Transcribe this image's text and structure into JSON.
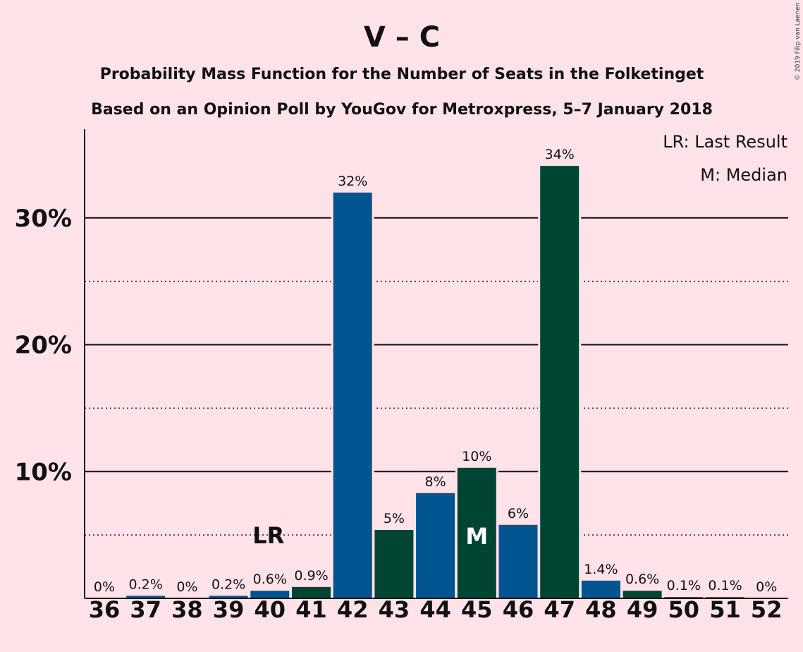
{
  "chart_data": {
    "type": "bar",
    "title": "V – C",
    "subtitle_line1": "Probability Mass Function for the Number of Seats in the Folketinget",
    "subtitle_line2": "Based on an Opinion Poll by YouGov for Metroxpress, 5–7 January 2018",
    "copyright": "© 2019 Filip van Laenen",
    "legend": {
      "placement": "top-right",
      "entries": [
        "LR: Last Result",
        "M: Median"
      ]
    },
    "categories": [
      "36",
      "37",
      "38",
      "39",
      "40",
      "41",
      "42",
      "43",
      "44",
      "45",
      "46",
      "47",
      "48",
      "49",
      "50",
      "51",
      "52"
    ],
    "values": [
      0,
      0.2,
      0,
      0.2,
      0.6,
      0.9,
      32,
      5.4,
      8.3,
      10.3,
      5.8,
      34.1,
      1.4,
      0.6,
      0.1,
      0.1,
      0
    ],
    "data_labels": [
      "0%",
      "0.2%",
      "0%",
      "0.2%",
      "0.6%",
      "0.9%",
      "32%",
      "5%",
      "8%",
      "10%",
      "6%",
      "34%",
      "1.4%",
      "0.6%",
      "0.1%",
      "0.1%",
      "0%"
    ],
    "bar_colors": [
      "#00548F",
      "#00548F",
      "#004434",
      "#00548F",
      "#00548F",
      "#004434",
      "#00548F",
      "#004434",
      "#00548F",
      "#004434",
      "#00548F",
      "#004434",
      "#00548F",
      "#004434",
      "#004434",
      "#00548F",
      "#004434"
    ],
    "colors": {
      "blue": "#00548F",
      "green": "#004434",
      "background": "#FFE3E8"
    },
    "markers": {
      "last_result": {
        "category": "40",
        "label": "LR"
      },
      "median": {
        "category": "45",
        "label": "M"
      }
    },
    "yticks": [
      10,
      20,
      30
    ],
    "ytick_labels": [
      "10%",
      "20%",
      "30%"
    ],
    "minor_grid": [
      5,
      15,
      25
    ],
    "ylim": [
      0,
      37
    ],
    "grid": true
  }
}
